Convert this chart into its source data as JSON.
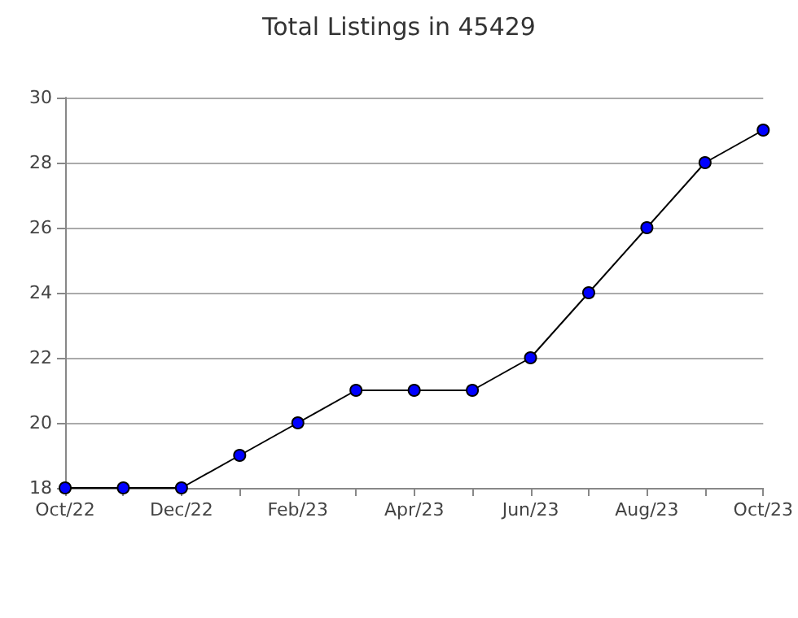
{
  "chart_data": {
    "type": "line",
    "title": "Total Listings in 45429",
    "categories": [
      "Oct/22",
      null,
      "Dec/22",
      null,
      "Feb/23",
      null,
      "Apr/23",
      null,
      "Jun/23",
      null,
      "Aug/23",
      null,
      "Oct/23"
    ],
    "series": [
      {
        "color": "#0000ff",
        "values": [
          18,
          18,
          18,
          19,
          20,
          21,
          21,
          21,
          22,
          24,
          26,
          28,
          29
        ]
      }
    ],
    "ylim": [
      18,
      30
    ],
    "yticks": [
      18,
      20,
      22,
      24,
      26,
      28,
      30
    ],
    "grid": "y",
    "marker": "circle",
    "line_style": "solid"
  }
}
